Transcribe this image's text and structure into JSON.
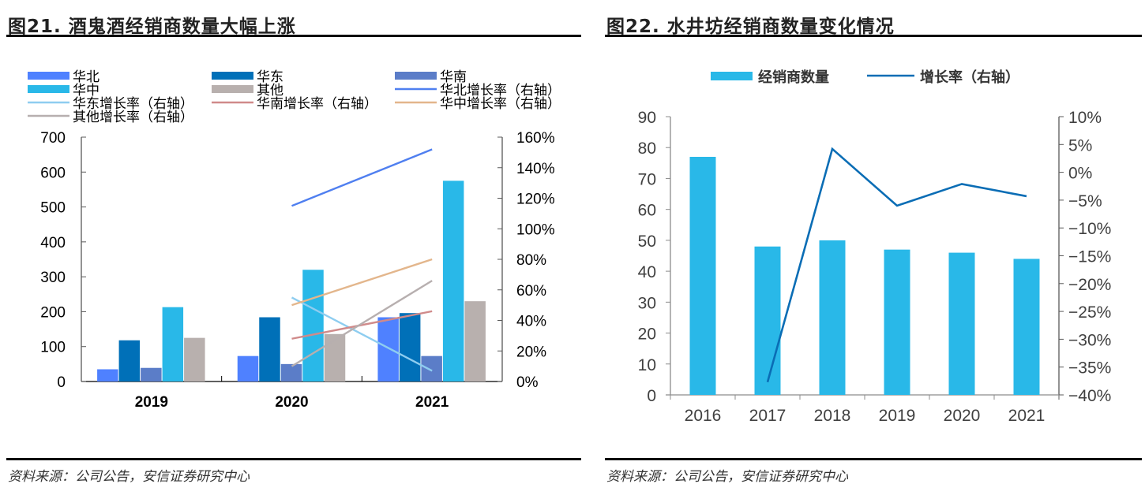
{
  "charts": {
    "left": {
      "title": "图21. 酒鬼酒经销商数量大幅上涨",
      "source": "资料来源：公司公告，安信证券研究中心"
    },
    "right": {
      "title": "图22. 水井坊经销商数量变化情况",
      "source": "资料来源：公司公告，安信证券研究中心"
    }
  },
  "chart_data": [
    {
      "type": "bar",
      "title": "图21. 酒鬼酒经销商数量大幅上涨",
      "categories": [
        "2019",
        "2020",
        "2021"
      ],
      "ylim": [
        0,
        700
      ],
      "yticks": [
        "0",
        "100",
        "200",
        "300",
        "400",
        "500",
        "600",
        "700"
      ],
      "y2lim": [
        0,
        1.6
      ],
      "y2ticks": [
        "0%",
        "20%",
        "40%",
        "60%",
        "80%",
        "100%",
        "120%",
        "140%",
        "160%"
      ],
      "legend_position": "top",
      "series": [
        {
          "name": "华北",
          "kind": "bar",
          "color": "#4F81FF",
          "values": [
            35,
            73,
            184
          ]
        },
        {
          "name": "华东",
          "kind": "bar",
          "color": "#0070B8",
          "values": [
            118,
            184,
            196
          ]
        },
        {
          "name": "华南",
          "kind": "bar",
          "color": "#5B7DC8",
          "values": [
            39,
            50,
            73
          ]
        },
        {
          "name": "华中",
          "kind": "bar",
          "color": "#29B8E8",
          "values": [
            213,
            320,
            575
          ]
        },
        {
          "name": "其他",
          "kind": "bar",
          "color": "#B8B0AE",
          "values": [
            125,
            136,
            230
          ]
        },
        {
          "name": "华北增长率（右轴）",
          "kind": "line",
          "axis": "right",
          "color": "#4F7FF0",
          "values": [
            null,
            1.15,
            1.52
          ]
        },
        {
          "name": "华东增长率（右轴）",
          "kind": "line",
          "axis": "right",
          "color": "#8ECDF0",
          "values": [
            null,
            0.55,
            0.07
          ]
        },
        {
          "name": "华南增长率（右轴）",
          "kind": "line",
          "axis": "right",
          "color": "#D08A8A",
          "values": [
            null,
            0.28,
            0.46
          ]
        },
        {
          "name": "华中增长率（右轴）",
          "kind": "line",
          "axis": "right",
          "color": "#E3B68C",
          "values": [
            null,
            0.5,
            0.8
          ]
        },
        {
          "name": "其他增长率（右轴）",
          "kind": "line",
          "axis": "right",
          "color": "#B7AFAF",
          "values": [
            null,
            0.1,
            0.66
          ]
        }
      ]
    },
    {
      "type": "bar",
      "title": "图22. 水井坊经销商数量变化情况",
      "categories": [
        "2016",
        "2017",
        "2018",
        "2019",
        "2020",
        "2021"
      ],
      "ylim": [
        0,
        90
      ],
      "yticks": [
        "0",
        "10",
        "20",
        "30",
        "40",
        "50",
        "60",
        "70",
        "80",
        "90"
      ],
      "y2lim": [
        -0.4,
        0.1
      ],
      "y2ticks": [
        "−40%",
        "−35%",
        "−30%",
        "−25%",
        "−20%",
        "−15%",
        "−10%",
        "−5%",
        "0%",
        "5%",
        "10%"
      ],
      "legend_position": "top",
      "series": [
        {
          "name": "经销商数量",
          "kind": "bar",
          "color": "#29B8E8",
          "values": [
            77,
            48,
            50,
            47,
            46,
            44
          ]
        },
        {
          "name": "增长率（右轴）",
          "kind": "line",
          "axis": "right",
          "color": "#0A6DB5",
          "values": [
            null,
            -0.377,
            0.042,
            -0.06,
            -0.021,
            -0.043
          ]
        }
      ]
    }
  ]
}
